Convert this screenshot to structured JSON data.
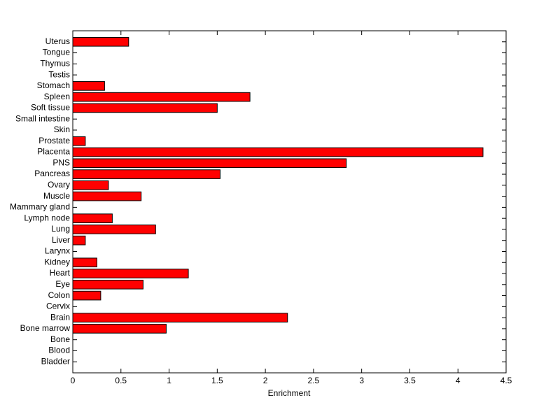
{
  "chart_data": {
    "type": "barh",
    "xlabel": "Enrichment",
    "categories": [
      "Bladder",
      "Blood",
      "Bone",
      "Bone marrow",
      "Brain",
      "Cervix",
      "Colon",
      "Eye",
      "Heart",
      "Kidney",
      "Larynx",
      "Liver",
      "Lung",
      "Lymph node",
      "Mammary gland",
      "Muscle",
      "Ovary",
      "Pancreas",
      "PNS",
      "Placenta",
      "Prostate",
      "Skin",
      "Small intestine",
      "Soft tissue",
      "Spleen",
      "Stomach",
      "Testis",
      "Thymus",
      "Tongue",
      "Uterus"
    ],
    "values": [
      0,
      0,
      0,
      0.97,
      2.23,
      0,
      0.29,
      0.73,
      1.2,
      0.25,
      0,
      0.13,
      0.86,
      0.41,
      0,
      0.71,
      0.37,
      1.53,
      2.84,
      4.26,
      0.13,
      0,
      0,
      1.5,
      1.84,
      0.33,
      0,
      0,
      0,
      0.58
    ],
    "color": "#ff0000",
    "xlim": [
      0,
      4.5
    ],
    "xticks": [
      0,
      0.5,
      1,
      1.5,
      2,
      2.5,
      3,
      3.5,
      4,
      4.5
    ],
    "ylim": [
      0,
      31
    ]
  }
}
